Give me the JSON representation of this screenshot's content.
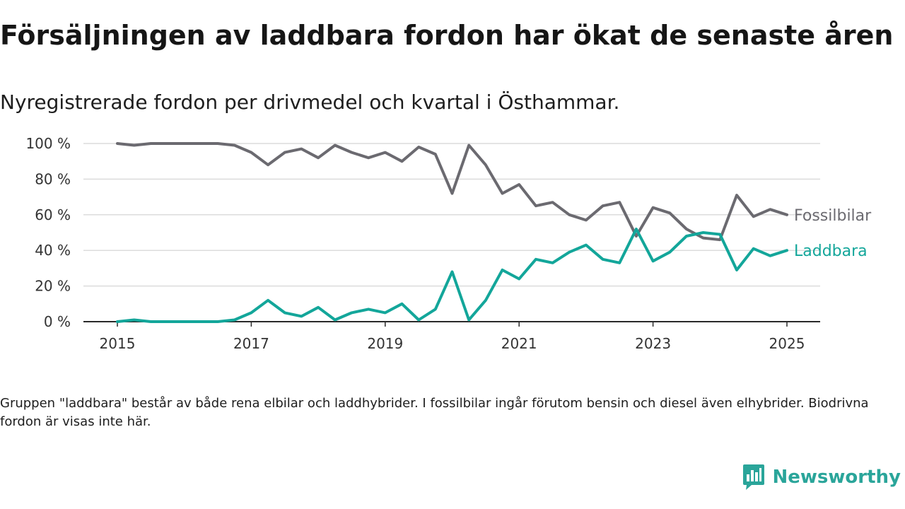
{
  "header": {
    "title": "Försäljningen av laddbara fordon har ökat de senaste åren",
    "subtitle": "Nyregistrerade fordon per drivmedel och kvartal i Östhammar."
  },
  "footer": {
    "note": "Gruppen \"laddbara\" består av både rena elbilar och laddhybrider. I fossilbilar ingår förutom bensin och diesel även elhybrider. Biodrivna fordon är visas inte här.",
    "brand": "Newsworthy",
    "brand_icon": "newsworthy-logo-icon",
    "brand_color": "#2aa59a"
  },
  "chart_data": {
    "type": "line",
    "title": "",
    "xlabel": "",
    "ylabel": "",
    "xlim": [
      2015,
      2025
    ],
    "ylim": [
      0,
      100
    ],
    "grid": true,
    "y_ticks": [
      0,
      20,
      40,
      60,
      80,
      100
    ],
    "y_tick_labels": [
      "0 %",
      "20 %",
      "40 %",
      "60 %",
      "80 %",
      "100 %"
    ],
    "x_ticks": [
      2015,
      2017,
      2019,
      2021,
      2023,
      2025
    ],
    "x_tick_labels": [
      "2015",
      "2017",
      "2019",
      "2021",
      "2023",
      "2025"
    ],
    "x": [
      2015.0,
      2015.25,
      2015.5,
      2015.75,
      2016.0,
      2016.25,
      2016.5,
      2016.75,
      2017.0,
      2017.25,
      2017.5,
      2017.75,
      2018.0,
      2018.25,
      2018.5,
      2018.75,
      2019.0,
      2019.25,
      2019.5,
      2019.75,
      2020.0,
      2020.25,
      2020.5,
      2020.75,
      2021.0,
      2021.25,
      2021.5,
      2021.75,
      2022.0,
      2022.25,
      2022.5,
      2022.75,
      2023.0,
      2023.25,
      2023.5,
      2023.75,
      2024.0,
      2024.25,
      2024.5,
      2024.75,
      2025.0
    ],
    "series": [
      {
        "name": "Fossilbilar",
        "color": "#6b6a70",
        "values": [
          100,
          99,
          100,
          100,
          100,
          100,
          100,
          99,
          95,
          88,
          95,
          97,
          92,
          99,
          95,
          92,
          95,
          90,
          98,
          94,
          72,
          99,
          88,
          72,
          77,
          65,
          67,
          60,
          57,
          65,
          67,
          48,
          64,
          61,
          52,
          47,
          46,
          71,
          59,
          63,
          60
        ]
      },
      {
        "name": "Laddbara",
        "color": "#13a69a",
        "values": [
          0,
          1,
          0,
          0,
          0,
          0,
          0,
          1,
          5,
          12,
          5,
          3,
          8,
          1,
          5,
          7,
          5,
          10,
          1,
          7,
          28,
          1,
          12,
          29,
          24,
          35,
          33,
          39,
          43,
          35,
          33,
          52,
          34,
          39,
          48,
          50,
          49,
          29,
          41,
          37,
          40
        ]
      }
    ]
  }
}
